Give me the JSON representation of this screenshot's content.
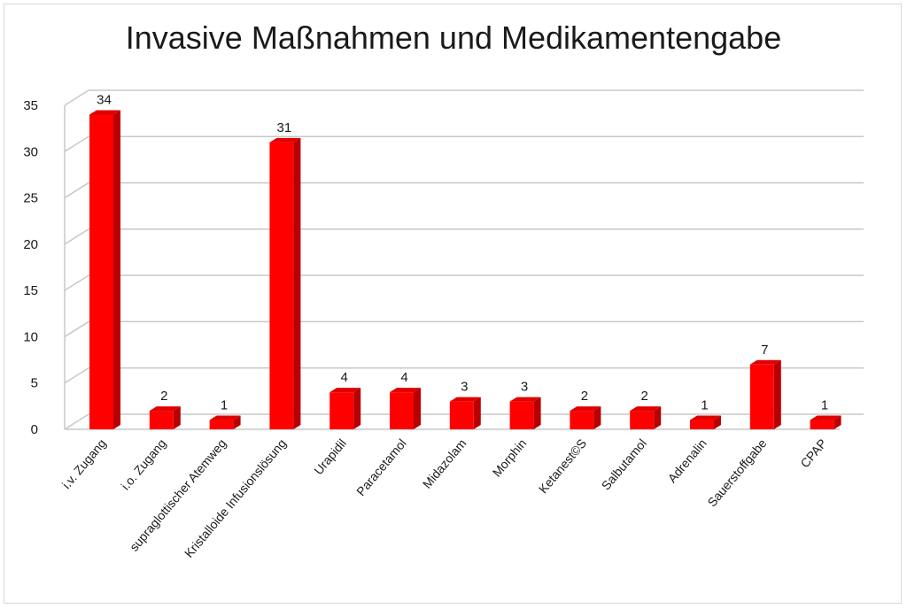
{
  "chart_data": {
    "type": "bar",
    "title": "Invasive Maßnahmen und Medikamentengabe",
    "categories": [
      "i.v. Zugang",
      "i.o. Zugang",
      "supraglottischer Atemweg",
      "Kristalloide Infusionslösung",
      "Urapidil",
      "Paracetamol",
      "Midazolam",
      "Morphin",
      "Ketanest©S",
      "Salbutamol",
      "Adrenalin",
      "Sauerstoffgabe",
      "CPAP"
    ],
    "values": [
      34,
      2,
      1,
      31,
      4,
      4,
      3,
      3,
      2,
      2,
      1,
      7,
      1
    ],
    "ylim": [
      0,
      35
    ],
    "yticks": [
      0,
      5,
      10,
      15,
      20,
      25,
      30,
      35
    ],
    "grid": true,
    "legend": "none",
    "bar_color": "#ff0000",
    "bar_side_color": "#b80000",
    "bar_top_color": "#e00000",
    "grid_color": "#c8c8c8"
  }
}
